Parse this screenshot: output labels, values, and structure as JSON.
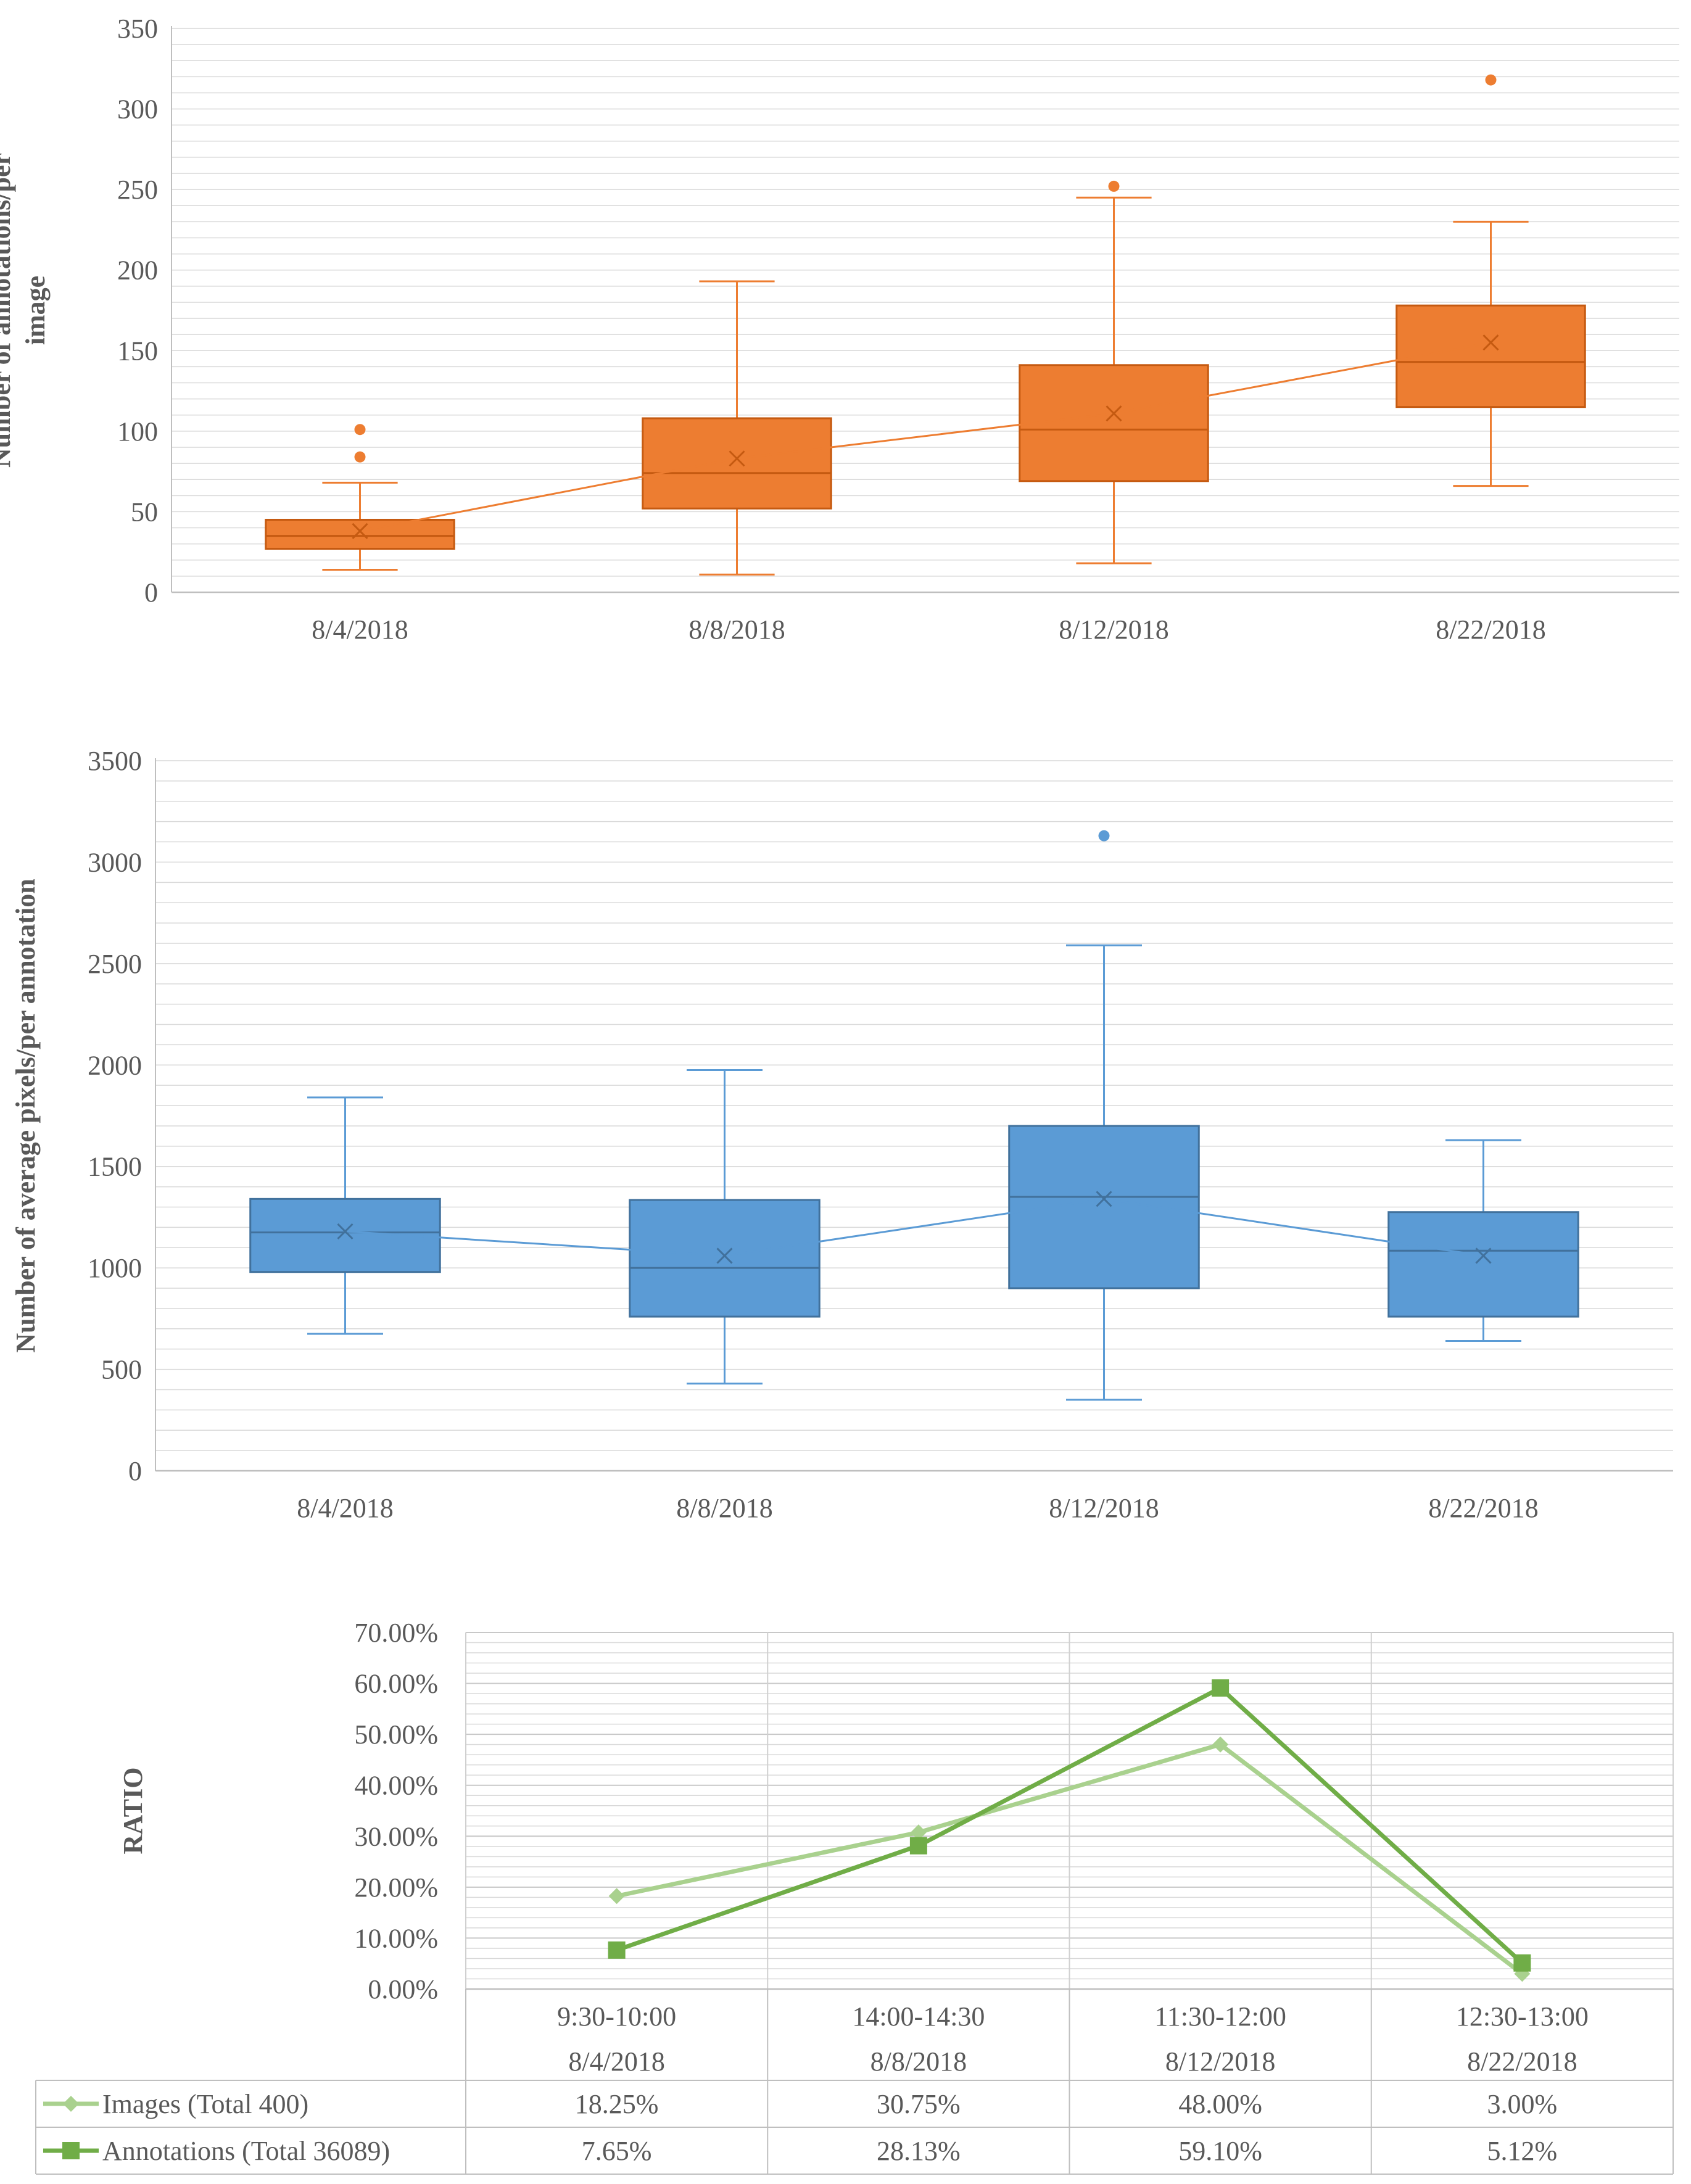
{
  "chart_data": [
    {
      "type": "box",
      "ylabel_lines": [
        "Number of annotations/per",
        "image"
      ],
      "ylim": [
        0,
        350
      ],
      "yticks": [
        0,
        50,
        100,
        150,
        200,
        250,
        300,
        350
      ],
      "categories": [
        "8/4/2018",
        "8/8/2018",
        "8/12/2018",
        "8/22/2018"
      ],
      "color": "#ED7D31",
      "boxes": [
        {
          "min": 14,
          "q1": 27,
          "median": 35,
          "q3": 45,
          "max": 68,
          "mean": 38,
          "outliers": [
            84,
            101
          ]
        },
        {
          "min": 11,
          "q1": 52,
          "median": 74,
          "q3": 108,
          "max": 193,
          "mean": 83,
          "outliers": []
        },
        {
          "min": 18,
          "q1": 69,
          "median": 101,
          "q3": 141,
          "max": 245,
          "mean": 111,
          "outliers": [
            252
          ]
        },
        {
          "min": 66,
          "q1": 115,
          "median": 143,
          "q3": 178,
          "max": 230,
          "mean": 155,
          "outliers": [
            318
          ]
        }
      ]
    },
    {
      "type": "box",
      "ylabel_lines": [
        "Number of average pixels/per annotation"
      ],
      "ylim": [
        0,
        3500
      ],
      "yticks": [
        0,
        500,
        1000,
        1500,
        2000,
        2500,
        3000,
        3500
      ],
      "categories": [
        "8/4/2018",
        "8/8/2018",
        "8/12/2018",
        "8/22/2018"
      ],
      "color": "#5B9BD5",
      "boxes": [
        {
          "min": 675,
          "q1": 980,
          "median": 1175,
          "q3": 1340,
          "max": 1840,
          "mean": 1180,
          "outliers": []
        },
        {
          "min": 430,
          "q1": 760,
          "median": 1000,
          "q3": 1335,
          "max": 1975,
          "mean": 1060,
          "outliers": []
        },
        {
          "min": 350,
          "q1": 900,
          "median": 1350,
          "q3": 1700,
          "max": 2590,
          "mean": 1340,
          "outliers": [
            3130
          ]
        },
        {
          "min": 640,
          "q1": 760,
          "median": 1085,
          "q3": 1275,
          "max": 1630,
          "mean": 1060,
          "outliers": []
        }
      ]
    },
    {
      "type": "line",
      "ylabel": "RATIO",
      "ylim": [
        0,
        70
      ],
      "ytick_labels": [
        "0.00%",
        "10.00%",
        "20.00%",
        "30.00%",
        "40.00%",
        "50.00%",
        "60.00%",
        "70.00%"
      ],
      "categories": [
        {
          "time": "9:30-10:00",
          "date": "8/4/2018"
        },
        {
          "time": "14:00-14:30",
          "date": "8/8/2018"
        },
        {
          "time": "11:30-12:00",
          "date": "8/12/2018"
        },
        {
          "time": "12:30-13:00",
          "date": "8/22/2018"
        }
      ],
      "series": [
        {
          "name": "Images (Total 400)",
          "color": "#A9D18E",
          "marker": "diamond",
          "values": [
            18.25,
            30.75,
            48.0,
            3.0
          ],
          "labels": [
            "18.25%",
            "30.75%",
            "48.00%",
            "3.00%"
          ]
        },
        {
          "name": "Annotations (Total 36089)",
          "color": "#70AD47",
          "marker": "square",
          "values": [
            7.65,
            28.13,
            59.1,
            5.12
          ],
          "labels": [
            "7.65%",
            "28.13%",
            "59.10%",
            "5.12%"
          ]
        }
      ]
    }
  ]
}
